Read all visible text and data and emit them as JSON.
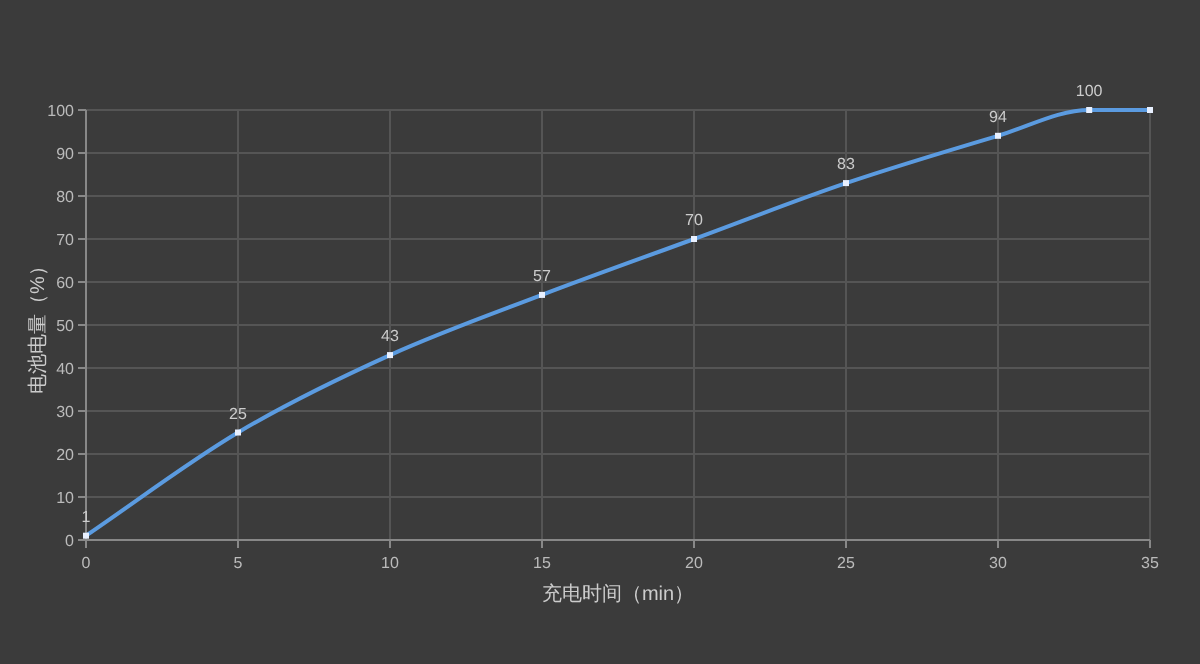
{
  "chart_data": {
    "type": "line",
    "xlabel": "充电时间（min）",
    "ylabel": "电池电量（%）",
    "x": [
      0,
      5,
      10,
      15,
      20,
      25,
      30,
      33,
      35
    ],
    "series": [
      {
        "color": "#5b9be0",
        "values": [
          1,
          25,
          43,
          57,
          70,
          83,
          94,
          100,
          100
        ],
        "value_labels": [
          "1",
          "25",
          "43",
          "57",
          "70",
          "83",
          "94",
          "100",
          null
        ]
      }
    ],
    "xlim": [
      0,
      35
    ],
    "xticks": [
      0,
      5,
      10,
      15,
      20,
      25,
      30,
      35
    ],
    "ylim": [
      0,
      100
    ],
    "yticks": [
      0,
      10,
      20,
      30,
      40,
      50,
      60,
      70,
      80,
      90,
      100
    ],
    "grid": true,
    "marker": "square",
    "line_style": "solid"
  }
}
